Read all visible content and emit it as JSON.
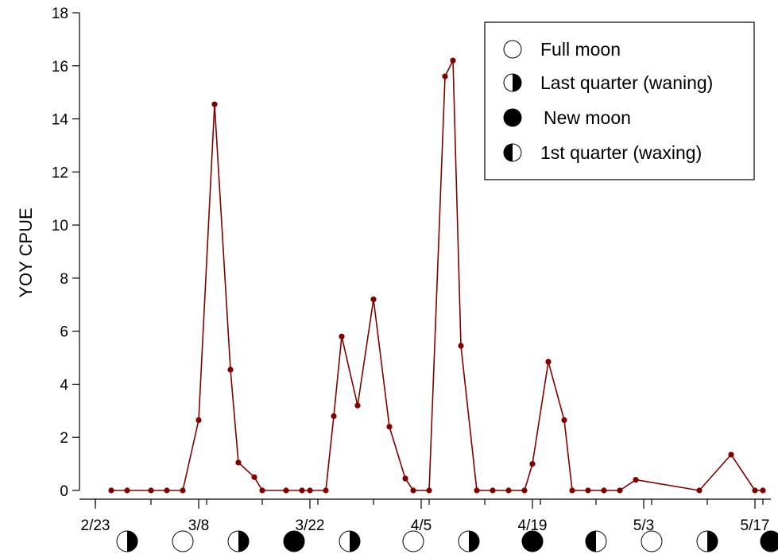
{
  "chart_data": {
    "type": "line",
    "title": "",
    "xlabel": "",
    "ylabel": "YOY CPUE",
    "ylim": [
      0,
      18
    ],
    "xlim": [
      "2/21",
      "5/19"
    ],
    "yticks": [
      0,
      2,
      4,
      6,
      8,
      10,
      12,
      14,
      16,
      18
    ],
    "xticks": [
      "2/23",
      "3/8",
      "3/22",
      "4/5",
      "4/19",
      "5/3",
      "5/17"
    ],
    "grid": false,
    "legend_position": "top-right",
    "colors": {
      "series": "#800000",
      "axis": "#000000"
    },
    "series": [
      {
        "x": [
          "2/25",
          "2/27",
          "3/2",
          "3/4",
          "3/6",
          "3/8",
          "3/10",
          "3/12",
          "3/13",
          "3/15",
          "3/16",
          "3/19",
          "3/21",
          "3/22",
          "3/24",
          "3/25",
          "3/26",
          "3/28",
          "3/30",
          "4/1",
          "4/3",
          "4/4",
          "4/6",
          "4/8",
          "4/9",
          "4/10",
          "4/12",
          "4/14",
          "4/16",
          "4/18",
          "4/19",
          "4/21",
          "4/23",
          "4/24",
          "4/26",
          "4/28",
          "4/30",
          "5/2",
          "5/10",
          "5/14",
          "5/17",
          "5/18"
        ],
        "values": [
          0,
          0,
          0,
          0,
          0,
          2.65,
          14.55,
          4.55,
          1.05,
          0.5,
          0,
          0,
          0,
          0,
          0,
          2.8,
          5.8,
          3.2,
          7.2,
          2.4,
          0.45,
          0,
          0,
          15.6,
          16.2,
          5.45,
          0,
          0,
          0,
          0,
          1,
          4.85,
          2.65,
          0,
          0,
          0,
          0,
          0.4,
          0,
          1.35,
          0,
          0
        ]
      }
    ],
    "moon_phases": [
      {
        "date": "2/27",
        "phase": "last-quarter"
      },
      {
        "date": "3/6",
        "phase": "full"
      },
      {
        "date": "3/13",
        "phase": "last-quarter"
      },
      {
        "date": "3/20",
        "phase": "new"
      },
      {
        "date": "3/27",
        "phase": "last-quarter"
      },
      {
        "date": "4/4",
        "phase": "full"
      },
      {
        "date": "4/11",
        "phase": "last-quarter"
      },
      {
        "date": "4/19",
        "phase": "new"
      },
      {
        "date": "4/27",
        "phase": "first-quarter"
      },
      {
        "date": "5/4",
        "phase": "full"
      },
      {
        "date": "5/11",
        "phase": "last-quarter"
      },
      {
        "date": "5/19",
        "phase": "new"
      }
    ],
    "legend": [
      {
        "phase": "full",
        "label": "Full moon"
      },
      {
        "phase": "last-quarter",
        "label": "Last quarter (waning)"
      },
      {
        "phase": "new",
        "label": "New moon"
      },
      {
        "phase": "first-quarter",
        "label": "1st quarter (waxing)"
      }
    ]
  }
}
